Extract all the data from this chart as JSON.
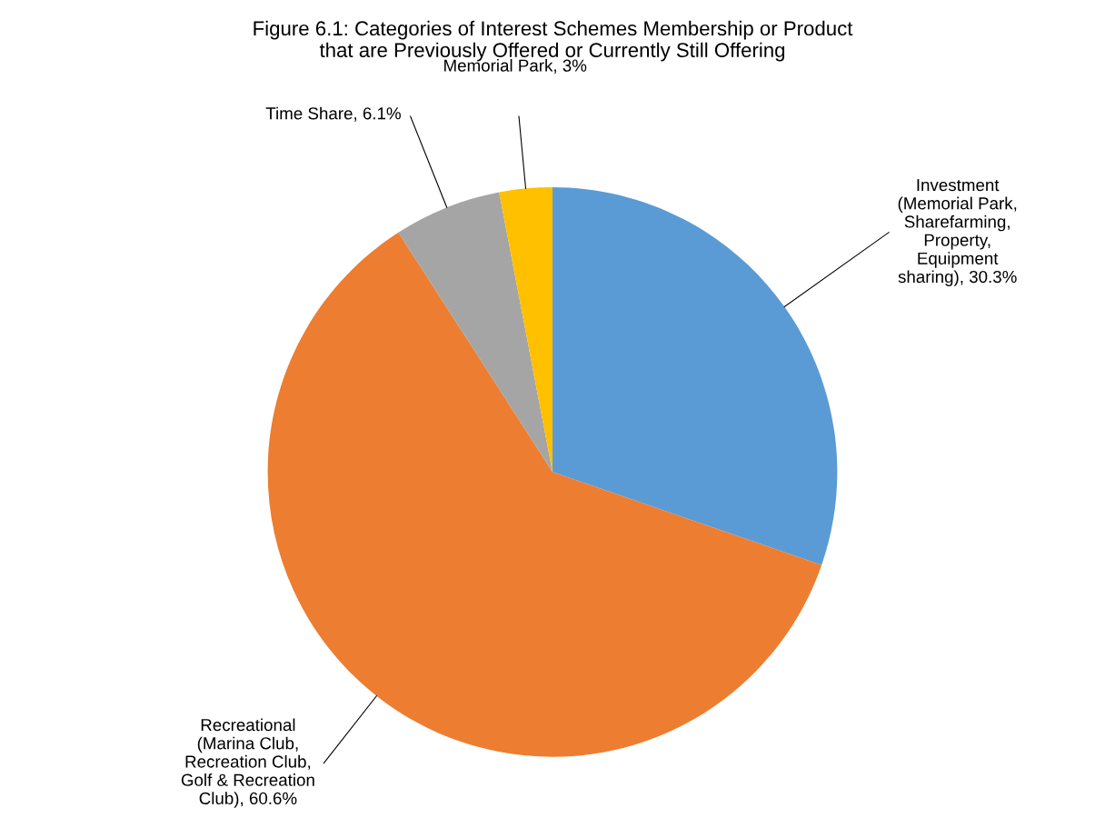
{
  "chart_data": {
    "type": "pie",
    "title": "Figure 6.1: Categories of Interest Schemes Membership or Product\nthat are Previously Offered or Currently Still Offering",
    "categories": [
      "Investment\n(Memorial Park,\nSharefarming,\nProperty,\nEquipment\nsharing)",
      "Recreational\n(Marina Club,\nRecreation Club,\nGolf & Recreation\nClub)",
      "Time Share",
      "Memorial Park"
    ],
    "values": [
      30.3,
      60.6,
      6.1,
      3
    ],
    "value_labels": [
      "30.3%",
      "60.6%",
      "6.1%",
      "3%"
    ],
    "colors": [
      "#5b9bd5",
      "#ed7d31",
      "#a5a5a5",
      "#ffc000"
    ],
    "legend": false
  }
}
